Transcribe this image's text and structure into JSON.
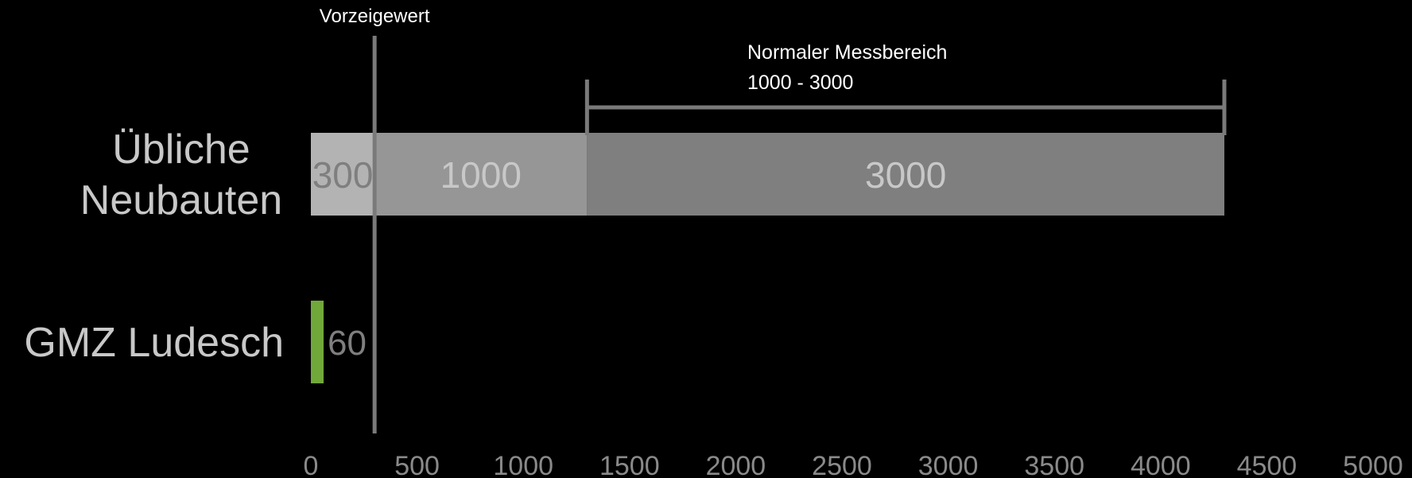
{
  "colors": {
    "background": "#000000",
    "segment_300": "#b3b3b3",
    "segment_1000": "#969696",
    "segment_3000": "#7f7f7f",
    "ludesch_bar": "#71a83a",
    "reference_line": "#7a7a7a",
    "category_text": "#c8c8c8",
    "segment_label_dark": "#7f7f7f",
    "segment_label_light": "#c8c8c8",
    "tick_text": "#8a8a8a",
    "annotation_text": "#ffffff"
  },
  "chart_data": {
    "type": "bar",
    "orientation": "horizontal",
    "stacked": true,
    "categories": [
      "Übliche Neubauten",
      "GMZ Ludesch"
    ],
    "category_lines": [
      [
        "Übliche",
        "Neubauten"
      ],
      [
        "GMZ Ludesch"
      ]
    ],
    "series": [
      {
        "values": [
          300,
          60
        ],
        "labels": [
          "300",
          "60"
        ]
      },
      {
        "values": [
          1000,
          0
        ],
        "labels": [
          "1000",
          ""
        ]
      },
      {
        "values": [
          3000,
          0
        ],
        "labels": [
          "3000",
          ""
        ]
      }
    ],
    "xlim": [
      0,
      5000
    ],
    "x_ticks": [
      "0",
      "500",
      "1000",
      "1500",
      "2000",
      "2500",
      "3000",
      "3500",
      "4000",
      "4500",
      "5000"
    ],
    "grid": false,
    "annotations": {
      "reference_line": {
        "label": "Vorzeigewert",
        "x": 300
      },
      "range_bracket": {
        "line1": "Normaler Messbereich",
        "line2": "1000 - 3000",
        "x_start": 1300,
        "x_end": 4300
      }
    }
  }
}
